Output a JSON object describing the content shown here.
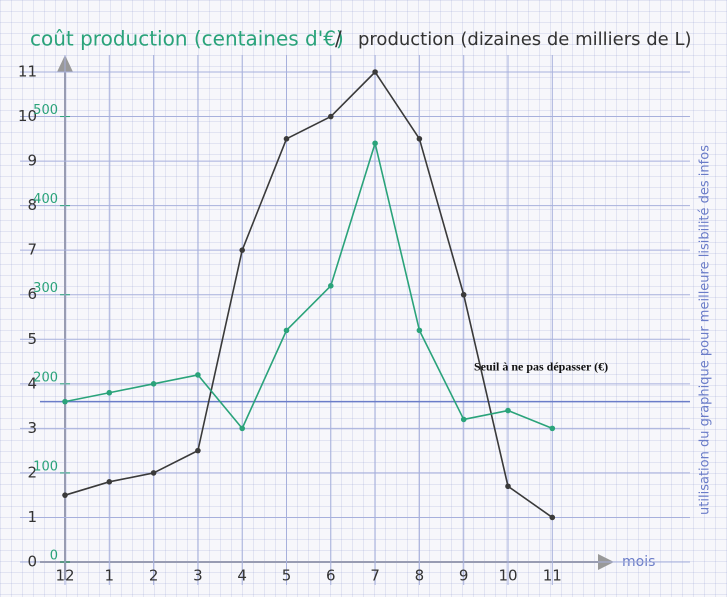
{
  "chart_data": {
    "type": "line",
    "y2label": "coût production (centaines d'€)",
    "label_separator": "/",
    "ylabel": "production (dizaines de milliers de L)",
    "xlabel": "mois",
    "note": "utilisation du graphique pour meilleure lisibilité des infos",
    "categories": [
      "12",
      "1",
      "2",
      "3",
      "4",
      "5",
      "6",
      "7",
      "8",
      "9",
      "10",
      "11"
    ],
    "series": [
      {
        "name": "production",
        "color": "#3a3a3a",
        "axis": "y",
        "values": [
          1.5,
          1.8,
          2,
          2.5,
          7,
          9.5,
          10,
          11,
          9.5,
          6,
          1.7,
          1
        ]
      },
      {
        "name": "coût production",
        "color": "#2aa37a",
        "axis": "y2",
        "values": [
          180,
          190,
          200,
          210,
          150,
          260,
          310,
          470,
          260,
          160,
          170,
          150
        ]
      }
    ],
    "threshold": {
      "label": "Seuil à ne pas dépasser (€)",
      "value": 180,
      "axis": "y2",
      "color": "#6a7cc8"
    },
    "ylim": [
      0,
      11
    ],
    "yticks": [
      0,
      1,
      2,
      3,
      4,
      5,
      6,
      7,
      8,
      9,
      10,
      11
    ],
    "y2lim": [
      0,
      550
    ],
    "y2ticks": [
      0,
      100,
      200,
      300,
      400,
      500
    ],
    "grid": true
  }
}
